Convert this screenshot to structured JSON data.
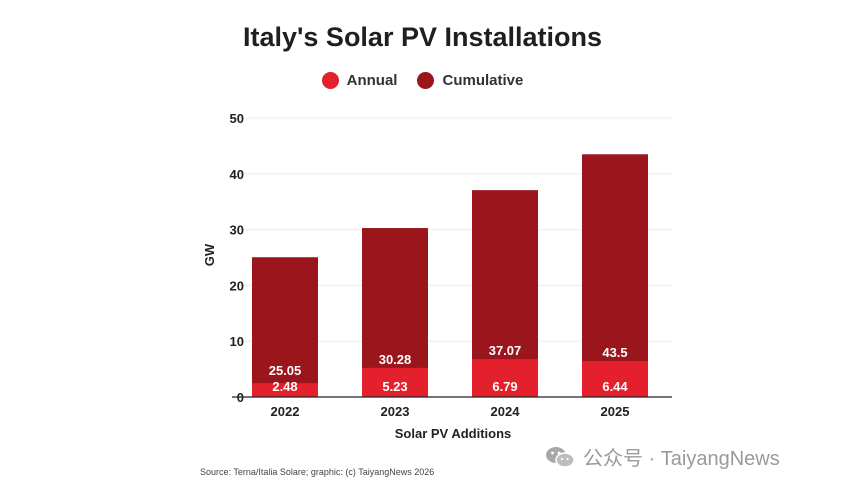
{
  "chart_data": {
    "type": "bar",
    "title": "Italy's Solar PV Installations",
    "xlabel": "Solar PV Additions",
    "ylabel": "GW",
    "ylim": [
      0,
      50
    ],
    "yticks": [
      0,
      10,
      20,
      30,
      40,
      50
    ],
    "categories": [
      "2022",
      "2023",
      "2024",
      "2025"
    ],
    "series": [
      {
        "name": "Annual",
        "color": "#e3202b",
        "values": [
          2.48,
          5.23,
          6.79,
          6.44
        ]
      },
      {
        "name": "Cumulative",
        "color": "#9b151d",
        "values": [
          25.05,
          30.28,
          37.07,
          43.5
        ]
      }
    ],
    "legend_position": "top-center",
    "grid": true
  },
  "source": "Source: Terna/Italia Solare; graphic: (c) TaiyangNews 2026",
  "watermark": {
    "icon": "wechat-icon",
    "text": "公众号 · TaiyangNews"
  }
}
